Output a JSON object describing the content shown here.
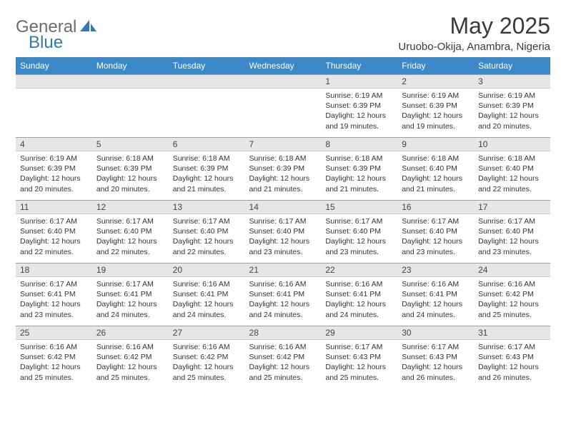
{
  "brand": {
    "general": "General",
    "blue": "Blue"
  },
  "title": "May 2025",
  "location": "Uruobo-Okija, Anambra, Nigeria",
  "colors": {
    "header_bg": "#3b87c8",
    "header_text": "#ffffff",
    "daynum_bg": "#e6e6e6",
    "border": "#9aa0a6",
    "text": "#333333",
    "brand_gray": "#6c6c6c",
    "brand_blue": "#2f77b5"
  },
  "dayHeaders": [
    "Sunday",
    "Monday",
    "Tuesday",
    "Wednesday",
    "Thursday",
    "Friday",
    "Saturday"
  ],
  "weeks": [
    [
      null,
      null,
      null,
      null,
      {
        "n": "1",
        "sunrise": "6:19 AM",
        "sunset": "6:39 PM",
        "daylight": "12 hours and 19 minutes."
      },
      {
        "n": "2",
        "sunrise": "6:19 AM",
        "sunset": "6:39 PM",
        "daylight": "12 hours and 19 minutes."
      },
      {
        "n": "3",
        "sunrise": "6:19 AM",
        "sunset": "6:39 PM",
        "daylight": "12 hours and 20 minutes."
      }
    ],
    [
      {
        "n": "4",
        "sunrise": "6:19 AM",
        "sunset": "6:39 PM",
        "daylight": "12 hours and 20 minutes."
      },
      {
        "n": "5",
        "sunrise": "6:18 AM",
        "sunset": "6:39 PM",
        "daylight": "12 hours and 20 minutes."
      },
      {
        "n": "6",
        "sunrise": "6:18 AM",
        "sunset": "6:39 PM",
        "daylight": "12 hours and 21 minutes."
      },
      {
        "n": "7",
        "sunrise": "6:18 AM",
        "sunset": "6:39 PM",
        "daylight": "12 hours and 21 minutes."
      },
      {
        "n": "8",
        "sunrise": "6:18 AM",
        "sunset": "6:39 PM",
        "daylight": "12 hours and 21 minutes."
      },
      {
        "n": "9",
        "sunrise": "6:18 AM",
        "sunset": "6:40 PM",
        "daylight": "12 hours and 21 minutes."
      },
      {
        "n": "10",
        "sunrise": "6:18 AM",
        "sunset": "6:40 PM",
        "daylight": "12 hours and 22 minutes."
      }
    ],
    [
      {
        "n": "11",
        "sunrise": "6:17 AM",
        "sunset": "6:40 PM",
        "daylight": "12 hours and 22 minutes."
      },
      {
        "n": "12",
        "sunrise": "6:17 AM",
        "sunset": "6:40 PM",
        "daylight": "12 hours and 22 minutes."
      },
      {
        "n": "13",
        "sunrise": "6:17 AM",
        "sunset": "6:40 PM",
        "daylight": "12 hours and 22 minutes."
      },
      {
        "n": "14",
        "sunrise": "6:17 AM",
        "sunset": "6:40 PM",
        "daylight": "12 hours and 23 minutes."
      },
      {
        "n": "15",
        "sunrise": "6:17 AM",
        "sunset": "6:40 PM",
        "daylight": "12 hours and 23 minutes."
      },
      {
        "n": "16",
        "sunrise": "6:17 AM",
        "sunset": "6:40 PM",
        "daylight": "12 hours and 23 minutes."
      },
      {
        "n": "17",
        "sunrise": "6:17 AM",
        "sunset": "6:40 PM",
        "daylight": "12 hours and 23 minutes."
      }
    ],
    [
      {
        "n": "18",
        "sunrise": "6:17 AM",
        "sunset": "6:41 PM",
        "daylight": "12 hours and 23 minutes."
      },
      {
        "n": "19",
        "sunrise": "6:17 AM",
        "sunset": "6:41 PM",
        "daylight": "12 hours and 24 minutes."
      },
      {
        "n": "20",
        "sunrise": "6:16 AM",
        "sunset": "6:41 PM",
        "daylight": "12 hours and 24 minutes."
      },
      {
        "n": "21",
        "sunrise": "6:16 AM",
        "sunset": "6:41 PM",
        "daylight": "12 hours and 24 minutes."
      },
      {
        "n": "22",
        "sunrise": "6:16 AM",
        "sunset": "6:41 PM",
        "daylight": "12 hours and 24 minutes."
      },
      {
        "n": "23",
        "sunrise": "6:16 AM",
        "sunset": "6:41 PM",
        "daylight": "12 hours and 24 minutes."
      },
      {
        "n": "24",
        "sunrise": "6:16 AM",
        "sunset": "6:42 PM",
        "daylight": "12 hours and 25 minutes."
      }
    ],
    [
      {
        "n": "25",
        "sunrise": "6:16 AM",
        "sunset": "6:42 PM",
        "daylight": "12 hours and 25 minutes."
      },
      {
        "n": "26",
        "sunrise": "6:16 AM",
        "sunset": "6:42 PM",
        "daylight": "12 hours and 25 minutes."
      },
      {
        "n": "27",
        "sunrise": "6:16 AM",
        "sunset": "6:42 PM",
        "daylight": "12 hours and 25 minutes."
      },
      {
        "n": "28",
        "sunrise": "6:16 AM",
        "sunset": "6:42 PM",
        "daylight": "12 hours and 25 minutes."
      },
      {
        "n": "29",
        "sunrise": "6:17 AM",
        "sunset": "6:43 PM",
        "daylight": "12 hours and 25 minutes."
      },
      {
        "n": "30",
        "sunrise": "6:17 AM",
        "sunset": "6:43 PM",
        "daylight": "12 hours and 26 minutes."
      },
      {
        "n": "31",
        "sunrise": "6:17 AM",
        "sunset": "6:43 PM",
        "daylight": "12 hours and 26 minutes."
      }
    ]
  ],
  "labels": {
    "sunrise": "Sunrise:",
    "sunset": "Sunset:",
    "daylight": "Daylight:"
  }
}
